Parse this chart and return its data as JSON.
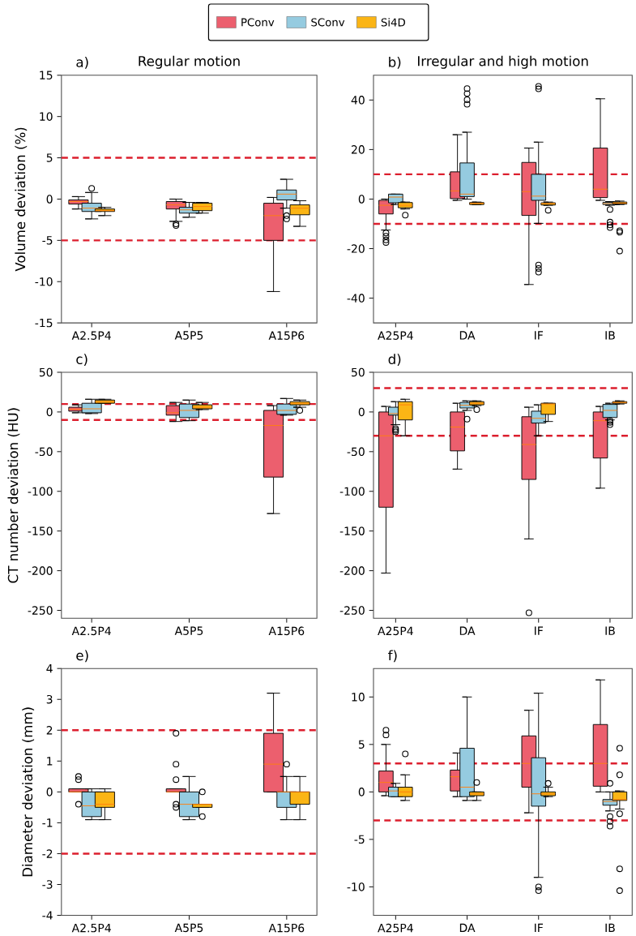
{
  "chart_data": [
    {
      "type": "box",
      "title": "Regular motion",
      "ylabel": "Volume deviation (%)",
      "annotations": [
        "a)"
      ],
      "legend": "top",
      "categories": [
        "A2.5P4",
        "A5P5",
        "A15P6"
      ],
      "ylim": [
        -15,
        15
      ],
      "yticks": [
        -15,
        -10,
        -5,
        0,
        5,
        10,
        15
      ],
      "ref_lines": [
        {
          "axis": "y",
          "value": 5,
          "color": "#dc1f2e",
          "line_style": "dashed"
        },
        {
          "axis": "y",
          "value": -5,
          "color": "#dc1f2e",
          "line_style": "dashed"
        }
      ],
      "series": [
        {
          "name": "PConv",
          "color": "#ec5f6e",
          "boxes": [
            {
              "low": -1.2,
              "q1": -0.6,
              "median": -0.3,
              "q3": -0.1,
              "high": 0.3
            },
            {
              "low": -2.7,
              "q1": -1.2,
              "median": -0.7,
              "q3": -0.3,
              "high": 0.0,
              "outliers": [
                -3.0,
                -3.2
              ]
            },
            {
              "low": -11.2,
              "q1": -5.0,
              "median": -2.0,
              "q3": -0.5,
              "high": 0.2
            }
          ]
        },
        {
          "name": "SConv",
          "color": "#95cbe0",
          "boxes": [
            {
              "low": -2.4,
              "q1": -1.5,
              "median": -1.1,
              "q3": -0.5,
              "high": 0.8,
              "outliers": [
                1.3
              ]
            },
            {
              "low": -2.2,
              "q1": -1.7,
              "median": -1.3,
              "q3": -1.0,
              "high": -0.4
            },
            {
              "low": -1.1,
              "q1": -0.1,
              "median": 0.6,
              "q3": 1.1,
              "high": 2.4,
              "outliers": [
                -2.0,
                -2.4
              ]
            }
          ]
        },
        {
          "name": "Si4D",
          "color": "#fbb515",
          "boxes": [
            {
              "low": -2.0,
              "q1": -1.5,
              "median": -1.4,
              "q3": -1.2,
              "high": -1.0
            },
            {
              "low": -1.7,
              "q1": -1.4,
              "median": -0.9,
              "q3": -0.5,
              "high": -0.4
            },
            {
              "low": -3.3,
              "q1": -1.9,
              "median": -1.1,
              "q3": -0.7,
              "high": -0.2
            }
          ]
        }
      ]
    },
    {
      "type": "box",
      "title": "Irregular and high motion",
      "annotations": [
        "b)"
      ],
      "categories": [
        "A25P4",
        "DA",
        "IF",
        "IB"
      ],
      "ylim": [
        -50,
        50
      ],
      "yticks": [
        -40,
        -20,
        0,
        20,
        40
      ],
      "ref_lines": [
        {
          "axis": "y",
          "value": 10,
          "color": "#dc1f2e",
          "line_style": "dashed"
        },
        {
          "axis": "y",
          "value": -10,
          "color": "#dc1f2e",
          "line_style": "dashed"
        }
      ],
      "series": [
        {
          "color": "#ec5f6e",
          "boxes": [
            {
              "low": -12.5,
              "q1": -6.0,
              "median": -2.5,
              "q3": -0.5,
              "high": 0.0,
              "outliers": [
                -13.7,
                -15.0,
                -16.5,
                -17.5
              ]
            },
            {
              "low": -0.5,
              "q1": 0.2,
              "median": 3.3,
              "q3": 11.0,
              "high": 26.0
            },
            {
              "low": -34.5,
              "q1": -6.6,
              "median": 3.0,
              "q3": 14.8,
              "high": 20.6
            },
            {
              "low": -0.5,
              "q1": 0.6,
              "median": 4.0,
              "q3": 20.6,
              "high": 40.5
            }
          ]
        },
        {
          "color": "#95cbe0",
          "boxes": [
            {
              "low": -2.2,
              "q1": -1.5,
              "median": 0.8,
              "q3": 2.0,
              "high": 2.0
            },
            {
              "low": 0.0,
              "q1": 1.0,
              "median": 2.0,
              "q3": 14.6,
              "high": 27.0,
              "outliers": [
                38.3,
                40.1,
                42.6,
                44.6
              ]
            },
            {
              "low": -9.8,
              "q1": -0.5,
              "median": 1.2,
              "q3": 10.0,
              "high": 23.0,
              "outliers": [
                44.5,
                45.5,
                -26.6,
                -28.0,
                -29.5
              ]
            },
            {
              "low": -2.5,
              "q1": -2.2,
              "median": -1.8,
              "q3": -1.3,
              "high": -1.0,
              "outliers": [
                -4.2,
                -9.3,
                -10.4,
                -11.5
              ]
            }
          ]
        },
        {
          "color": "#fbb515",
          "boxes": [
            {
              "low": -4.0,
              "q1": -3.5,
              "median": -2.5,
              "q3": -1.4,
              "high": -1.2,
              "outliers": [
                -6.5
              ]
            },
            {
              "low": -2.3,
              "q1": -2.2,
              "median": -1.7,
              "q3": -1.4,
              "high": -1.2
            },
            {
              "low": -2.5,
              "q1": -2.4,
              "median": -1.8,
              "q3": -1.5,
              "high": -1.2,
              "outliers": [
                -4.5
              ]
            },
            {
              "low": -2.2,
              "q1": -2.0,
              "median": -1.6,
              "q3": -1.2,
              "high": -0.8,
              "outliers": [
                -12.8,
                -13.4,
                -21.0
              ]
            }
          ]
        }
      ]
    },
    {
      "type": "box",
      "ylabel": "CT number deviation (HU)",
      "annotations": [
        "c)"
      ],
      "categories": [
        "A2.5P4",
        "A5P5",
        "A15P6"
      ],
      "ylim": [
        -260,
        50
      ],
      "yticks": [
        -250,
        -200,
        -150,
        -100,
        -50,
        0,
        50
      ],
      "ref_lines": [
        {
          "axis": "y",
          "value": 10,
          "color": "#dc1f2e",
          "line_style": "dashed"
        },
        {
          "axis": "y",
          "value": -10,
          "color": "#dc1f2e",
          "line_style": "dashed"
        }
      ],
      "series": [
        {
          "color": "#ec5f6e",
          "boxes": [
            {
              "low": -1,
              "q1": 1,
              "median": 3.5,
              "q3": 6,
              "high": 9
            },
            {
              "low": -12,
              "q1": -4,
              "median": -1,
              "q3": 8,
              "high": 12
            },
            {
              "low": -128,
              "q1": -82,
              "median": -17,
              "q3": 2,
              "high": 8
            }
          ]
        },
        {
          "color": "#95cbe0",
          "boxes": [
            {
              "low": -2,
              "q1": -1,
              "median": 4,
              "q3": 11,
              "high": 16
            },
            {
              "low": -11,
              "q1": -7,
              "median": 2,
              "q3": 10,
              "high": 15
            },
            {
              "low": -4,
              "q1": -3,
              "median": 2,
              "q3": 10,
              "high": 17
            }
          ]
        },
        {
          "color": "#fbb515",
          "boxes": [
            {
              "low": 11,
              "q1": 11,
              "median": 13,
              "q3": 15,
              "high": 16
            },
            {
              "low": 3,
              "q1": 4,
              "median": 6,
              "q3": 9,
              "high": 12
            },
            {
              "low": 6,
              "q1": 9,
              "median": 11,
              "q3": 13,
              "high": 15,
              "outliers": [
                2
              ]
            }
          ]
        }
      ]
    },
    {
      "type": "box",
      "annotations": [
        "d)"
      ],
      "categories": [
        "A25P4",
        "DA",
        "IF",
        "IB"
      ],
      "ylim": [
        -260,
        50
      ],
      "yticks": [
        -250,
        -200,
        -150,
        -100,
        -50,
        0,
        50
      ],
      "ref_lines": [
        {
          "axis": "y",
          "value": 30,
          "color": "#dc1f2e",
          "line_style": "dashed"
        },
        {
          "axis": "y",
          "value": -30,
          "color": "#dc1f2e",
          "line_style": "dashed"
        }
      ],
      "series": [
        {
          "color": "#ec5f6e",
          "boxes": [
            {
              "low": -203,
              "q1": -120,
              "median": -30,
              "q3": 0,
              "high": 7
            },
            {
              "low": -72,
              "q1": -49,
              "median": -19,
              "q3": 0,
              "high": 11
            },
            {
              "low": -160,
              "q1": -85,
              "median": -41,
              "q3": -6,
              "high": 6,
              "outliers": [
                -253
              ]
            },
            {
              "low": -96,
              "q1": -58,
              "median": -11,
              "q3": 0,
              "high": 7
            }
          ]
        },
        {
          "color": "#95cbe0",
          "boxes": [
            {
              "low": -16,
              "q1": -4,
              "median": -2,
              "q3": 6,
              "high": 13,
              "outliers": [
                -21,
                -23,
                -25
              ]
            },
            {
              "low": 2,
              "q1": 5,
              "median": 8.5,
              "q3": 12,
              "high": 14,
              "outliers": [
                -9
              ]
            },
            {
              "low": -30,
              "q1": -14,
              "median": -8,
              "q3": 1,
              "high": 9
            },
            {
              "low": -10,
              "q1": -7,
              "median": 2,
              "q3": 9.5,
              "high": 11,
              "outliers": [
                -11,
                -13,
                -16
              ]
            }
          ]
        },
        {
          "color": "#fbb515",
          "boxes": [
            {
              "low": -30,
              "q1": -10,
              "median": 9,
              "q3": 13,
              "high": 16
            },
            {
              "low": 8,
              "q1": 9,
              "median": 11,
              "q3": 13,
              "high": 14,
              "outliers": [
                3
              ]
            },
            {
              "low": -12,
              "q1": -3,
              "median": 10,
              "q3": 11,
              "high": 11
            },
            {
              "low": 10,
              "q1": 11,
              "median": 12,
              "q3": 13,
              "high": 14
            }
          ]
        }
      ]
    },
    {
      "type": "box",
      "ylabel": "Diameter deviation (mm)",
      "annotations": [
        "e)"
      ],
      "categories": [
        "A2.5P4",
        "A5P5",
        "A15P6"
      ],
      "ylim": [
        -4,
        4
      ],
      "yticks": [
        -4,
        -3,
        -2,
        -1,
        0,
        1,
        2,
        3,
        4
      ],
      "ref_lines": [
        {
          "axis": "y",
          "value": 2,
          "color": "#dc1f2e",
          "line_style": "dashed"
        },
        {
          "axis": "y",
          "value": -2,
          "color": "#dc1f2e",
          "line_style": "dashed"
        }
      ],
      "series": [
        {
          "color": "#ec5f6e",
          "boxes": [
            {
              "low": 0,
              "q1": 0,
              "median": 0,
              "q3": 0.1,
              "high": 0.1,
              "outliers": [
                0.5,
                0.4,
                -0.4
              ]
            },
            {
              "low": 0,
              "q1": 0,
              "median": 0,
              "q3": 0.1,
              "high": 0.1,
              "outliers": [
                1.9,
                0.9,
                0.4,
                -0.4,
                -0.5
              ]
            },
            {
              "low": 0,
              "q1": 0,
              "median": 0.9,
              "q3": 1.9,
              "high": 3.2
            }
          ]
        },
        {
          "color": "#95cbe0",
          "boxes": [
            {
              "low": -0.9,
              "q1": -0.8,
              "median": -0.45,
              "q3": 0,
              "high": 0.1
            },
            {
              "low": -0.9,
              "q1": -0.8,
              "median": -0.4,
              "q3": 0,
              "high": 0.5
            },
            {
              "low": -0.9,
              "q1": -0.5,
              "median": 0,
              "q3": 0,
              "high": 0.5,
              "outliers": [
                0.9
              ]
            }
          ]
        },
        {
          "color": "#fbb515",
          "boxes": [
            {
              "low": -0.9,
              "q1": -0.5,
              "median": -0.4,
              "q3": 0,
              "high": 0.1
            },
            {
              "low": -0.5,
              "q1": -0.5,
              "median": -0.4,
              "q3": -0.4,
              "high": -0.4,
              "outliers": [
                0.0,
                -0.8
              ]
            },
            {
              "low": -0.9,
              "q1": -0.4,
              "median": 0,
              "q3": 0,
              "high": 0.5
            }
          ]
        }
      ]
    },
    {
      "type": "box",
      "annotations": [
        "f)"
      ],
      "categories": [
        "A25P4",
        "DA",
        "IF",
        "IB"
      ],
      "ylim": [
        -13,
        13
      ],
      "yticks": [
        -10,
        -5,
        0,
        5,
        10
      ],
      "ref_lines": [
        {
          "axis": "y",
          "value": 3,
          "color": "#dc1f2e",
          "line_style": "dashed"
        },
        {
          "axis": "y",
          "value": -3,
          "color": "#dc1f2e",
          "line_style": "dashed"
        }
      ],
      "series": [
        {
          "color": "#ec5f6e",
          "boxes": [
            {
              "low": -0.4,
              "q1": 0,
              "median": 1,
              "q3": 2.2,
              "high": 5,
              "outliers": [
                6.5,
                6.0
              ]
            },
            {
              "low": -0.5,
              "q1": 0.1,
              "median": 1.6,
              "q3": 2.3,
              "high": 4.1
            },
            {
              "low": -2.2,
              "q1": 0.5,
              "median": 3.0,
              "q3": 5.9,
              "high": 8.6
            },
            {
              "low": 0,
              "q1": 0.6,
              "median": 3,
              "q3": 7.1,
              "high": 11.8
            }
          ]
        },
        {
          "color": "#95cbe0",
          "boxes": [
            {
              "low": -0.5,
              "q1": -0.5,
              "median": 0.1,
              "q3": 0.5,
              "high": 0.9
            },
            {
              "low": -0.9,
              "q1": -0.5,
              "median": 0.5,
              "q3": 4.6,
              "high": 10
            },
            {
              "low": -9,
              "q1": -1.5,
              "median": -0.2,
              "q3": 3.6,
              "high": 10.4,
              "outliers": [
                -10,
                -10.4
              ]
            },
            {
              "low": -2,
              "q1": -1.4,
              "median": -1,
              "q3": -0.8,
              "high": 0,
              "outliers": [
                0.9,
                -2.6,
                -3.1,
                -3.6
              ]
            }
          ]
        },
        {
          "color": "#fbb515",
          "boxes": [
            {
              "low": -0.9,
              "q1": -0.5,
              "median": 0,
              "q3": 0.5,
              "high": 1.8,
              "outliers": [
                4
              ]
            },
            {
              "low": -0.9,
              "q1": -0.4,
              "median": -0.2,
              "q3": 0,
              "high": 0,
              "outliers": [
                1
              ]
            },
            {
              "low": -0.5,
              "q1": -0.4,
              "median": -0.2,
              "q3": 0,
              "high": 0.5,
              "outliers": [
                0.9
              ]
            },
            {
              "low": -1.8,
              "q1": -0.9,
              "median": -0.8,
              "q3": 0,
              "high": 0.1,
              "outliers": [
                4.6,
                1.8,
                -2.3,
                -8.1,
                -10.4
              ]
            }
          ]
        }
      ]
    }
  ]
}
